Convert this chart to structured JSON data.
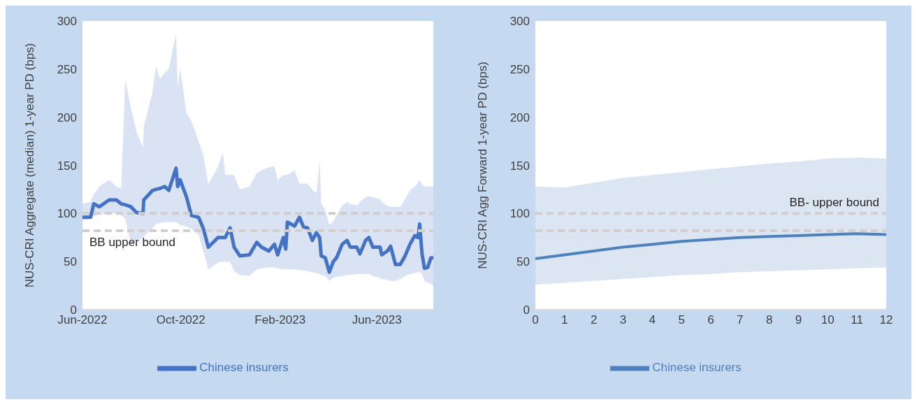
{
  "chart_data": [
    {
      "type": "line",
      "ylabel": "NUS-CRI Aggregate (median) 1-year PD (bps)",
      "legend": "bottom",
      "grid": false,
      "marker": "none",
      "line_style": "solid",
      "x": [
        "2022-06-01",
        "2022-06-11",
        "2022-06-15",
        "2022-06-22",
        "2022-07-04",
        "2022-07-13",
        "2022-07-19",
        "2022-07-24",
        "2022-07-31",
        "2022-08-07",
        "2022-08-15",
        "2022-08-16",
        "2022-08-27",
        "2022-08-31",
        "2022-09-05",
        "2022-09-11",
        "2022-09-16",
        "2022-09-25",
        "2022-09-27",
        "2022-09-30",
        "2022-10-08",
        "2022-10-14",
        "2022-10-23",
        "2022-10-29",
        "2022-11-04",
        "2022-11-16",
        "2022-11-22",
        "2022-11-25",
        "2022-12-01",
        "2022-12-06",
        "2022-12-13",
        "2022-12-25",
        "2023-01-03",
        "2023-01-09",
        "2023-01-18",
        "2023-01-25",
        "2023-01-29",
        "2023-02-05",
        "2023-02-08",
        "2023-02-10",
        "2023-02-19",
        "2023-02-25",
        "2023-03-02",
        "2023-03-07",
        "2023-03-13",
        "2023-03-18",
        "2023-03-22",
        "2023-03-24",
        "2023-03-29",
        "2023-04-03",
        "2023-04-08",
        "2023-04-12",
        "2023-04-19",
        "2023-04-25",
        "2023-04-29",
        "2023-05-07",
        "2023-05-11",
        "2023-05-18",
        "2023-05-22",
        "2023-05-27",
        "2023-06-05",
        "2023-06-07",
        "2023-06-14",
        "2023-06-18",
        "2023-06-24",
        "2023-06-30",
        "2023-07-06",
        "2023-07-12",
        "2023-07-18",
        "2023-07-22",
        "2023-07-24",
        "2023-07-27",
        "2023-07-30",
        "2023-08-03",
        "2023-08-07",
        "2023-08-10"
      ],
      "series": [
        {
          "name": "Chinese insurers",
          "color": "#4472c4",
          "values": [
            96,
            96,
            110,
            107,
            114,
            114,
            110,
            109,
            107,
            101,
            100,
            114,
            124,
            125,
            126,
            128,
            124,
            147,
            128,
            135,
            117,
            98,
            96,
            84,
            65,
            75,
            75,
            75,
            85,
            65,
            56,
            57,
            70,
            65,
            61,
            68,
            57,
            75,
            63,
            91,
            87,
            96,
            86,
            85,
            72,
            80,
            75,
            56,
            54,
            39,
            50,
            54,
            68,
            72,
            65,
            65,
            58,
            72,
            75,
            65,
            65,
            57,
            61,
            66,
            47,
            47,
            56,
            68,
            77,
            75,
            89,
            58,
            43,
            44,
            54,
            54
          ],
          "lower": [
            93,
            95,
            97,
            99,
            100,
            100,
            98,
            95,
            68,
            72,
            75,
            76,
            85,
            89,
            90,
            91,
            91,
            91,
            90,
            88,
            86,
            84,
            78,
            60,
            42,
            49,
            50,
            50,
            50,
            40,
            36,
            35,
            42,
            43,
            44,
            44,
            43,
            42,
            42,
            42,
            42,
            41,
            41,
            40,
            39,
            38,
            37,
            36,
            35,
            30,
            33,
            34,
            35,
            36,
            36,
            37,
            37,
            37,
            37,
            35,
            33,
            32,
            31,
            30,
            30,
            32,
            35,
            37,
            38,
            39,
            39,
            37,
            30,
            28,
            27,
            25
          ],
          "upper": [
            110,
            112,
            120,
            128,
            135,
            128,
            126,
            239,
            210,
            185,
            168,
            190,
            227,
            253,
            240,
            246,
            250,
            287,
            230,
            251,
            204,
            196,
            175,
            160,
            130,
            149,
            163,
            140,
            140,
            140,
            125,
            128,
            142,
            145,
            148,
            149,
            135,
            140,
            140,
            140,
            145,
            131,
            131,
            131,
            125,
            121,
            154,
            110,
            104,
            88,
            92,
            98,
            108,
            112,
            110,
            108,
            112,
            117,
            118,
            117,
            115,
            112,
            108,
            107,
            107,
            107,
            115,
            124,
            128,
            132,
            135,
            130,
            128,
            128,
            128,
            128
          ]
        }
      ],
      "xlim": [
        "2022-06-01",
        "2023-08-10"
      ],
      "xticks": [
        {
          "value": "2022-06-01",
          "label": "Jun-2022"
        },
        {
          "value": "2022-10-01",
          "label": "Oct-2022"
        },
        {
          "value": "2023-02-01",
          "label": "Feb-2023"
        },
        {
          "value": "2023-06-01",
          "label": "Jun-2023"
        }
      ],
      "ylim": [
        0,
        300
      ],
      "yticks": [
        0,
        50,
        100,
        150,
        200,
        250,
        300
      ],
      "ref_lines": [
        {
          "axis": "y",
          "value": 100,
          "label": null,
          "color": "#d0cece",
          "line_style": "dashed"
        },
        {
          "axis": "y",
          "value": 82,
          "label": "BB upper bound",
          "color": "#d0cece",
          "line_style": "dashed"
        }
      ]
    },
    {
      "type": "line",
      "ylabel": "NUS-CRI Agg Forward 1-year PD (bps)",
      "legend": "bottom",
      "grid": false,
      "marker": "none",
      "line_style": "solid",
      "x": [
        0,
        1,
        2,
        3,
        4,
        5,
        6,
        7,
        8,
        9,
        10,
        11,
        12
      ],
      "series": [
        {
          "name": "Chinese insurers",
          "color": "#4f81bd",
          "values": [
            53,
            57,
            61,
            65,
            68,
            71,
            73,
            75,
            76,
            77,
            78,
            79,
            78
          ],
          "lower": [
            26,
            28,
            30,
            32,
            34,
            36,
            37,
            39,
            40,
            41,
            42,
            43,
            44
          ],
          "upper": [
            128,
            127,
            132,
            137,
            140,
            143,
            146,
            149,
            152,
            154,
            157,
            158,
            157
          ]
        }
      ],
      "xlim": [
        0,
        12
      ],
      "xticks": [
        0,
        1,
        2,
        3,
        4,
        5,
        6,
        7,
        8,
        9,
        10,
        11,
        12
      ],
      "ylim": [
        0,
        300
      ],
      "yticks": [
        0,
        50,
        100,
        150,
        200,
        250,
        300
      ],
      "ref_lines": [
        {
          "axis": "y",
          "value": 100,
          "label": "BB- upper bound",
          "color": "#d0cece",
          "line_style": "dashed"
        },
        {
          "axis": "y",
          "value": 82,
          "label": null,
          "color": "#d0cece",
          "line_style": "dashed"
        }
      ]
    }
  ]
}
